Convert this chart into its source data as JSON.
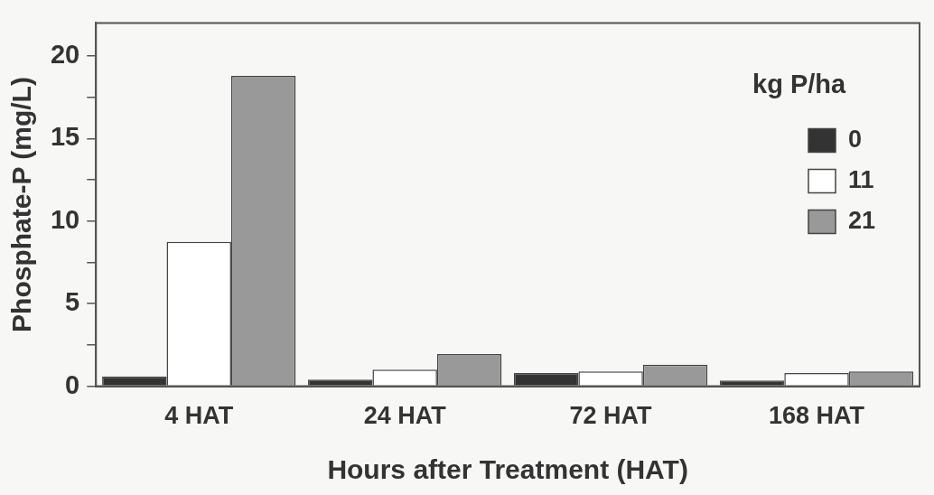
{
  "chart_data": {
    "type": "bar",
    "xlabel": "Hours after Treatment (HAT)",
    "ylabel": "Phosphate-P (mg/L)",
    "legend_title": "kg P/ha",
    "legend": "top right",
    "grid": false,
    "categories": [
      "4 HAT",
      "24 HAT",
      "72 HAT",
      "168 HAT"
    ],
    "series": [
      {
        "name": "0",
        "color": "#333333",
        "values": [
          0.6,
          0.4,
          0.8,
          0.35
        ]
      },
      {
        "name": "11",
        "color": "#ffffff",
        "values": [
          8.75,
          1.0,
          0.9,
          0.8
        ]
      },
      {
        "name": "21",
        "color": "#999999",
        "values": [
          18.8,
          1.95,
          1.3,
          0.9
        ]
      }
    ],
    "ylim": [
      0,
      22
    ],
    "yticks": [
      0,
      {
        "value": 2.5,
        "label": null
      },
      5,
      {
        "value": 7.5,
        "label": null
      },
      10,
      {
        "value": 12.5,
        "label": null
      },
      15,
      {
        "value": 17.5,
        "label": null
      },
      20
    ]
  }
}
